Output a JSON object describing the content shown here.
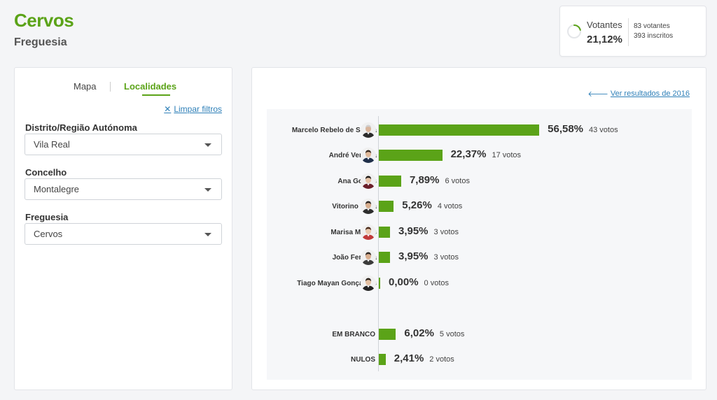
{
  "header": {
    "title": "Cervos",
    "subtitle": "Freguesia"
  },
  "turnout": {
    "label": "Votantes",
    "percentage": "21,12%",
    "fraction": 0.2112,
    "voters": "83 votantes",
    "registered": "393 inscritos",
    "accent": "#5ba318"
  },
  "filters": {
    "tabs": [
      {
        "label": "Mapa"
      },
      {
        "label": "Localidades"
      }
    ],
    "clear_label": "Limpar filtros",
    "fields": [
      {
        "label": "Distrito/Região Autónoma",
        "value": "Vila Real"
      },
      {
        "label": "Concelho",
        "value": "Montalegre"
      },
      {
        "label": "Freguesia",
        "value": "Cervos"
      }
    ]
  },
  "results": {
    "previous_link": "Ver resultados de 2016"
  },
  "chart_data": {
    "type": "bar",
    "orientation": "horizontal",
    "bar_color": "#5ba318",
    "categories": [
      "Marcelo Rebelo de Sousa",
      "André Ventura",
      "Ana Gomes",
      "Vitorino Silva",
      "Marisa Matias",
      "João Ferreira",
      "Tiago Mayan Gonçalves",
      "EM BRANCO",
      "NULOS"
    ],
    "values": [
      56.58,
      22.37,
      7.89,
      5.26,
      3.95,
      3.95,
      0.0,
      6.02,
      2.41
    ],
    "labels": [
      "56,58%",
      "22,37%",
      "7,89%",
      "5,26%",
      "3,95%",
      "3,95%",
      "0,00%",
      "6,02%",
      "2,41%"
    ],
    "votes": [
      "43 votos",
      "17 votos",
      "6 votos",
      "4 votos",
      "3 votos",
      "3 votos",
      "0 votos",
      "5 votos",
      "2 votos"
    ],
    "has_avatar": [
      true,
      true,
      true,
      true,
      true,
      true,
      true,
      false,
      false
    ],
    "xlim": [
      0,
      100
    ],
    "grid": false,
    "legend": "none"
  }
}
